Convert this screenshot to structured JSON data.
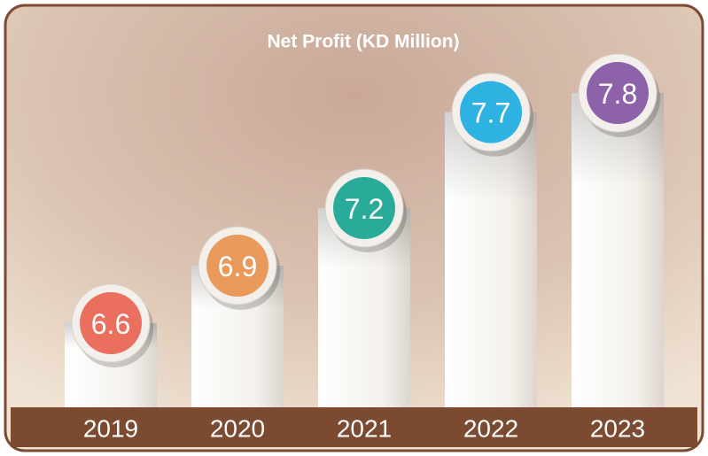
{
  "chart_data": {
    "type": "bar",
    "title": "Net Profit (KD Million)",
    "categories": [
      "2019",
      "2020",
      "2021",
      "2022",
      "2023"
    ],
    "values": [
      6.6,
      6.9,
      7.2,
      7.7,
      7.8
    ],
    "colors": [
      "#ea6f5e",
      "#e99a5b",
      "#2aab99",
      "#2db2e2",
      "#8d62a9"
    ]
  }
}
